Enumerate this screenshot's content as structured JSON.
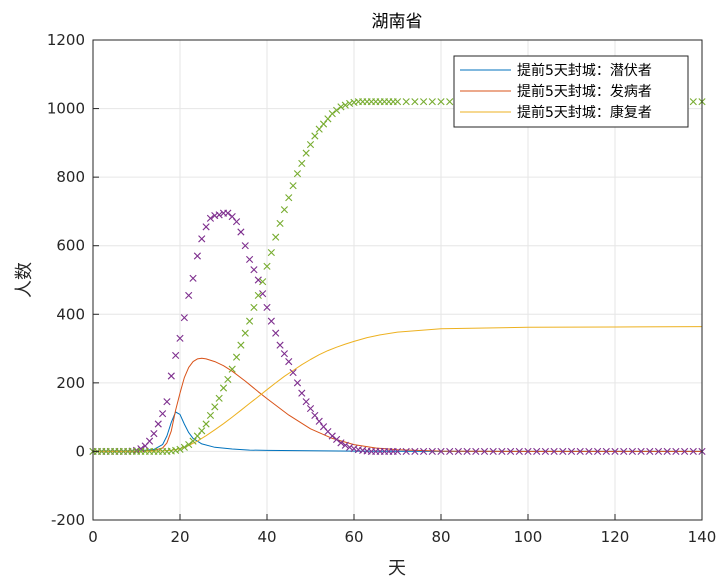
{
  "chart_data": {
    "type": "line",
    "title": "湖南省",
    "xlabel": "天",
    "ylabel": "人数",
    "xlim": [
      0,
      140
    ],
    "ylim": [
      -200,
      1200
    ],
    "xticks": [
      "0",
      "20",
      "40",
      "60",
      "80",
      "100",
      "120",
      "140"
    ],
    "yticks": [
      "-200",
      "0",
      "200",
      "400",
      "600",
      "800",
      "1000",
      "1200"
    ],
    "grid": true,
    "legend_position": "top-right",
    "colors": {
      "latent": "#0072BD",
      "ill": "#D95319",
      "recovered": "#EDB120",
      "marker_purple": "#7E2F8E",
      "marker_green": "#77AC30",
      "axis": "#262626",
      "grid": "#e6e6e6"
    },
    "series": [
      {
        "name": "提前5天封城：潜伏者",
        "style": "line",
        "x": [
          0,
          10,
          14,
          16,
          17,
          18,
          19,
          20,
          21,
          22,
          23,
          25,
          28,
          32,
          36,
          40,
          50,
          60,
          80,
          100,
          120,
          140
        ],
        "y": [
          0,
          1,
          6,
          20,
          45,
          85,
          115,
          108,
          80,
          55,
          38,
          22,
          12,
          7,
          4,
          3,
          2,
          1,
          0,
          0,
          0,
          0
        ]
      },
      {
        "name": "提前5天封城：发病者",
        "style": "line",
        "x": [
          0,
          10,
          14,
          16,
          17,
          18,
          19,
          20,
          21,
          22,
          23,
          24,
          25,
          26,
          28,
          30,
          32,
          35,
          38,
          40,
          45,
          50,
          55,
          60,
          65,
          70,
          80,
          100,
          120,
          140
        ],
        "y": [
          0,
          0,
          3,
          10,
          25,
          60,
          120,
          170,
          215,
          245,
          262,
          270,
          272,
          270,
          262,
          250,
          234,
          205,
          174,
          154,
          106,
          66,
          38,
          20,
          10,
          5,
          1,
          0,
          0,
          0
        ]
      },
      {
        "name": "提前5天封城：康复者",
        "style": "line",
        "x": [
          0,
          10,
          15,
          18,
          20,
          22,
          24,
          26,
          28,
          30,
          32,
          34,
          36,
          38,
          40,
          42,
          44,
          46,
          48,
          50,
          52,
          54,
          56,
          58,
          60,
          63,
          66,
          70,
          80,
          100,
          120,
          140
        ],
        "y": [
          0,
          0,
          1,
          3,
          8,
          17,
          30,
          46,
          63,
          81,
          100,
          120,
          140,
          160,
          180,
          200,
          219,
          236,
          253,
          268,
          282,
          294,
          304,
          313,
          321,
          332,
          340,
          348,
          358,
          362,
          363,
          364
        ]
      },
      {
        "name": "",
        "style": "marker-x",
        "x": [
          0,
          1,
          2,
          3,
          4,
          5,
          6,
          7,
          8,
          9,
          10,
          11,
          12,
          13,
          14,
          15,
          16,
          17,
          18,
          19,
          20,
          21,
          22,
          23,
          24,
          25,
          26,
          27,
          28,
          29,
          30,
          31,
          32,
          33,
          34,
          35,
          36,
          37,
          38,
          39,
          40,
          41,
          42,
          43,
          44,
          45,
          46,
          47,
          48,
          49,
          50,
          51,
          52,
          53,
          54,
          55,
          56,
          57,
          58,
          59,
          60,
          61,
          62,
          63,
          64,
          65,
          66,
          67,
          68,
          69,
          70,
          72,
          74,
          76,
          78,
          80,
          82,
          84,
          86,
          88,
          90,
          92,
          94,
          96,
          98,
          100,
          102,
          104,
          106,
          108,
          110,
          112,
          114,
          116,
          118,
          120,
          122,
          124,
          126,
          128,
          130,
          132,
          134,
          136,
          138,
          140
        ],
        "y": [
          0,
          0,
          0,
          0,
          0,
          0,
          0,
          0,
          0,
          1,
          3,
          8,
          16,
          30,
          52,
          80,
          110,
          145,
          220,
          280,
          330,
          390,
          455,
          505,
          570,
          620,
          655,
          680,
          688,
          690,
          695,
          695,
          685,
          670,
          640,
          600,
          560,
          530,
          500,
          460,
          420,
          380,
          345,
          310,
          285,
          262,
          230,
          200,
          170,
          145,
          125,
          105,
          88,
          72,
          58,
          45,
          35,
          25,
          18,
          12,
          8,
          5,
          3,
          1,
          0,
          0,
          0,
          0,
          0,
          0,
          0,
          0,
          0,
          0,
          0,
          0,
          0,
          0,
          0,
          0,
          0,
          0,
          0,
          0,
          0,
          0,
          0,
          0,
          0,
          0,
          0,
          0,
          0,
          0,
          0,
          0,
          0,
          0,
          0,
          0,
          0,
          0,
          0,
          0,
          0,
          0
        ]
      },
      {
        "name": "",
        "style": "marker-x",
        "x": [
          0,
          1,
          2,
          3,
          4,
          5,
          6,
          7,
          8,
          9,
          10,
          11,
          12,
          13,
          14,
          15,
          16,
          17,
          18,
          19,
          20,
          21,
          22,
          23,
          24,
          25,
          26,
          27,
          28,
          29,
          30,
          31,
          32,
          33,
          34,
          35,
          36,
          37,
          38,
          39,
          40,
          41,
          42,
          43,
          44,
          45,
          46,
          47,
          48,
          49,
          50,
          51,
          52,
          53,
          54,
          55,
          56,
          57,
          58,
          59,
          60,
          61,
          62,
          63,
          64,
          65,
          66,
          67,
          68,
          69,
          70,
          72,
          74,
          76,
          78,
          80,
          82,
          84,
          86,
          88,
          90,
          92,
          94,
          96,
          98,
          100,
          102,
          104,
          106,
          108,
          110,
          112,
          114,
          116,
          118,
          120,
          122,
          124,
          126,
          128,
          130,
          132,
          134,
          136,
          138,
          140
        ],
        "y": [
          0,
          0,
          0,
          0,
          0,
          0,
          0,
          0,
          0,
          0,
          0,
          0,
          0,
          0,
          0,
          0,
          0,
          0,
          1,
          3,
          6,
          12,
          20,
          30,
          45,
          60,
          80,
          105,
          130,
          155,
          185,
          210,
          240,
          275,
          310,
          345,
          380,
          420,
          455,
          495,
          540,
          580,
          625,
          665,
          705,
          740,
          775,
          810,
          840,
          870,
          895,
          920,
          940,
          955,
          970,
          985,
          995,
          1005,
          1010,
          1015,
          1018,
          1020,
          1020,
          1020,
          1020,
          1020,
          1020,
          1020,
          1020,
          1020,
          1020,
          1020,
          1020,
          1020,
          1020,
          1020,
          1020,
          1020,
          1020,
          1020,
          1020,
          1020,
          1020,
          1020,
          1020,
          1020,
          1020,
          1020,
          1020,
          1020,
          1020,
          1020,
          1020,
          1020,
          1020,
          1020,
          1020,
          1020,
          1020,
          1020,
          1020,
          1020,
          1020,
          1020,
          1020,
          1020
        ]
      }
    ]
  }
}
